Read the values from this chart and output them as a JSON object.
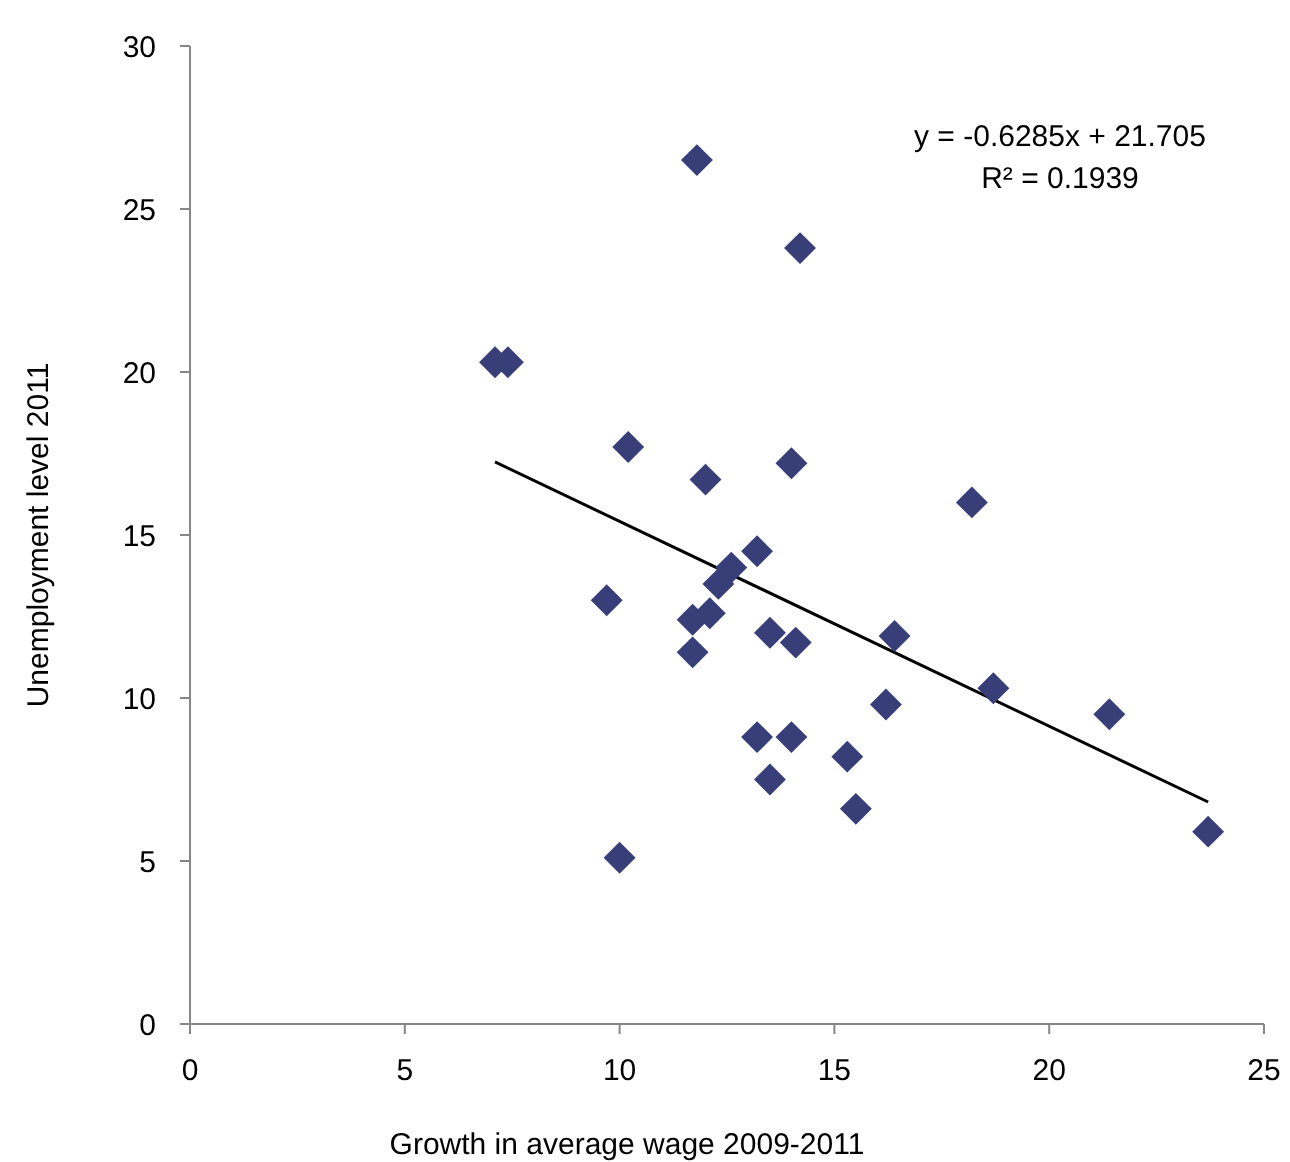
{
  "chart_data": {
    "type": "scatter",
    "xlabel": "Growth in average wage 2009-2011",
    "ylabel": "Unemployment level 2011",
    "xlim": [
      0,
      25
    ],
    "xticks": [
      0,
      5,
      10,
      15,
      20,
      25
    ],
    "ylim": [
      0,
      30
    ],
    "yticks": [
      0,
      5,
      10,
      15,
      20,
      25,
      30
    ],
    "grid": false,
    "annotations": [
      "y = -0.6285x + 21.705",
      "R² = 0.1939"
    ],
    "series": [
      {
        "marker": "diamond",
        "color": "#383e78",
        "x": [
          11.8,
          14.2,
          7.1,
          7.4,
          10.2,
          12.0,
          14.0,
          18.2,
          13.2,
          12.6,
          12.3,
          9.7,
          11.7,
          12.1,
          11.7,
          13.5,
          14.1,
          16.4,
          18.7,
          16.2,
          21.4,
          13.2,
          14.0,
          15.3,
          13.5,
          15.5,
          10.0,
          23.7
        ],
        "values": [
          26.5,
          23.8,
          20.3,
          20.3,
          17.7,
          16.7,
          17.2,
          16.0,
          14.5,
          14.0,
          13.5,
          13.0,
          12.4,
          12.6,
          11.4,
          12.0,
          11.7,
          11.9,
          10.3,
          9.8,
          9.5,
          8.8,
          8.8,
          8.2,
          7.5,
          6.6,
          5.1,
          5.9
        ]
      },
      {
        "type": "line",
        "marker": "none",
        "line_style": "solid",
        "color": "#000000",
        "x": [
          7.1,
          23.7
        ],
        "values": [
          17.24,
          6.81
        ]
      }
    ]
  }
}
